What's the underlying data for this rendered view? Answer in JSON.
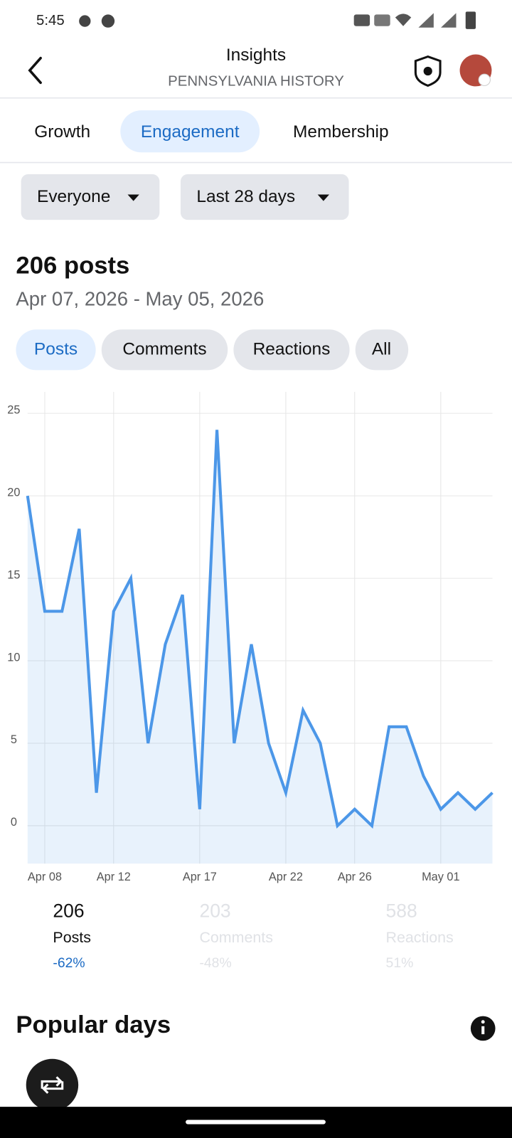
{
  "status_bar": {
    "time": "5:45"
  },
  "header": {
    "title": "Insights",
    "subtitle": "PENNSYLVANIA HISTORY"
  },
  "tabs": [
    "Growth",
    "Engagement",
    "Membership"
  ],
  "filters": [
    "Everyone",
    "Last 28 days"
  ],
  "summary": {
    "title": "206 posts",
    "date_range": "Apr 07, 2026 - May 05, 2026"
  },
  "metric_chips": [
    "Posts",
    "Comments",
    "Reactions",
    "All"
  ],
  "chart_data": {
    "type": "line",
    "categories": [
      null,
      "Apr 08",
      null,
      null,
      null,
      "Apr 12",
      null,
      null,
      null,
      null,
      "Apr 17",
      null,
      null,
      null,
      null,
      "Apr 22",
      null,
      null,
      null,
      "Apr 26",
      null,
      null,
      null,
      null,
      "May 01",
      null,
      null,
      null
    ],
    "values": [
      20,
      13,
      13,
      18,
      2,
      13,
      15,
      5,
      11,
      14,
      1,
      24,
      5,
      11,
      5,
      2,
      7,
      5,
      0,
      1,
      0,
      6,
      6,
      3,
      1,
      2,
      1,
      2
    ],
    "color": "#4c97e8",
    "ylim": [
      -2.3,
      26.3
    ],
    "yticks": [
      0,
      5,
      10,
      15,
      20,
      25
    ],
    "grid": true
  },
  "stats": [
    {
      "value": "206",
      "label": "Posts",
      "change": "-62%"
    },
    {
      "value": "203",
      "label": "Comments",
      "change": "-48%"
    },
    {
      "value": "588",
      "label": "Reactions",
      "change": "51%"
    }
  ],
  "popular_days": {
    "title": "Popular days"
  }
}
